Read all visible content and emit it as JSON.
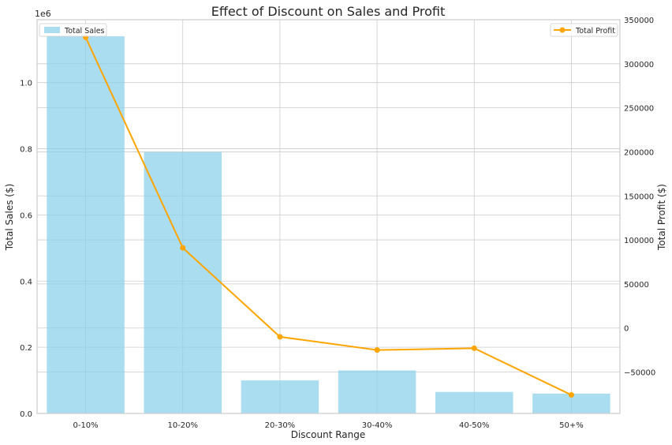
{
  "chart_data": {
    "type": "bar",
    "title": "Effect of Discount on Sales and Profit",
    "xlabel": "Discount Range",
    "categories": [
      "0-10%",
      "10-20%",
      "20-30%",
      "30-40%",
      "40-50%",
      "50+%"
    ],
    "grid": true,
    "y_left": {
      "label": "Total Sales ($)",
      "offset_text": "1e6",
      "ylim": [
        0,
        1.19
      ],
      "ticks": [
        0.0,
        0.2,
        0.4,
        0.6,
        0.8,
        1.0
      ],
      "tick_labels": [
        "0.0",
        "0.2",
        "0.4",
        "0.6",
        "0.8",
        "1.0"
      ]
    },
    "y_right": {
      "label": "Total Profit ($)",
      "ylim": [
        -97000,
        350000
      ],
      "ticks": [
        -50000,
        0,
        50000,
        100000,
        150000,
        200000,
        250000,
        300000,
        350000
      ],
      "tick_labels": [
        "−50000",
        "0",
        "50000",
        "100000",
        "150000",
        "200000",
        "250000",
        "300000",
        "350000"
      ]
    },
    "series": [
      {
        "name": "Total Sales",
        "type": "bar",
        "axis": "left",
        "values": [
          1.14,
          0.79,
          0.1,
          0.13,
          0.065,
          0.06
        ],
        "color": "#87ceeb"
      },
      {
        "name": "Total Profit",
        "type": "line",
        "axis": "right",
        "values": [
          330000,
          91000,
          -10000,
          -25000,
          -23000,
          -76000
        ],
        "color": "#ffa500"
      }
    ],
    "legends": [
      {
        "placement": "upper-left",
        "entries": [
          "Total Sales"
        ]
      },
      {
        "placement": "upper-right",
        "entries": [
          "Total Profit"
        ]
      }
    ]
  }
}
